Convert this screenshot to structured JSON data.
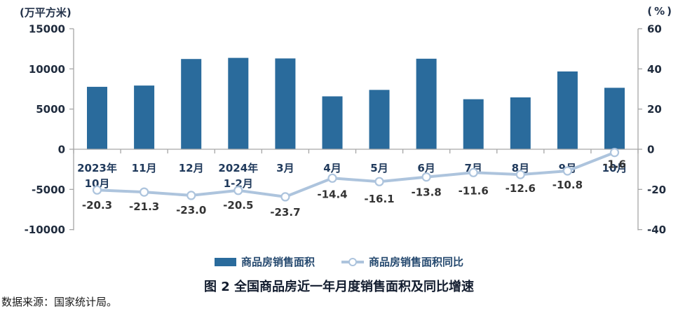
{
  "chart_data": {
    "type": "combo-bar-line",
    "title": "图 2 全国商品房近一年月度销售面积及同比增速",
    "categories": [
      [
        "2023年",
        "10月"
      ],
      [
        "11月"
      ],
      [
        "12月"
      ],
      [
        "2024年",
        "1-2月"
      ],
      [
        "3月"
      ],
      [
        "4月"
      ],
      [
        "5月"
      ],
      [
        "6月"
      ],
      [
        "7月"
      ],
      [
        "8月"
      ],
      [
        "9月"
      ],
      [
        "10月"
      ]
    ],
    "series": [
      {
        "name": "商品房销售面积",
        "type": "bar",
        "axis": "left",
        "color": "#2a6b9c",
        "values": [
          7770,
          7930,
          11230,
          11370,
          11300,
          6580,
          7390,
          11270,
          6230,
          6450,
          9680,
          7650
        ]
      },
      {
        "name": "商品房销售面积同比",
        "type": "line",
        "axis": "right",
        "color": "#adc4dd",
        "marker": "open-circle",
        "values": [
          -20.3,
          -21.3,
          -23.0,
          -20.5,
          -23.7,
          -14.4,
          -16.1,
          -13.8,
          -11.6,
          -12.6,
          -10.8,
          -1.6
        ],
        "data_labels": [
          "-20.3",
          "-21.3",
          "-23.0",
          "-20.5",
          "-23.7",
          "-14.4",
          "-16.1",
          "-13.8",
          "-11.6",
          "-12.6",
          "-10.8",
          "-1.6"
        ]
      }
    ],
    "left_axis": {
      "unit_label": "(万平方米)",
      "ticks": [
        "15000",
        "10000",
        "5000",
        "0",
        "-5000",
        "-10000"
      ],
      "min": -10000,
      "max": 15000
    },
    "right_axis": {
      "unit_label": "(%)",
      "ticks": [
        "60",
        "40",
        "20",
        "0",
        "-20",
        "-40"
      ],
      "min": -40,
      "max": 60
    },
    "grid": false,
    "legend_position": "bottom",
    "axis_line_color": "#a6a6a6"
  },
  "footer": {
    "source_note": "数据来源：国家统计局。"
  }
}
